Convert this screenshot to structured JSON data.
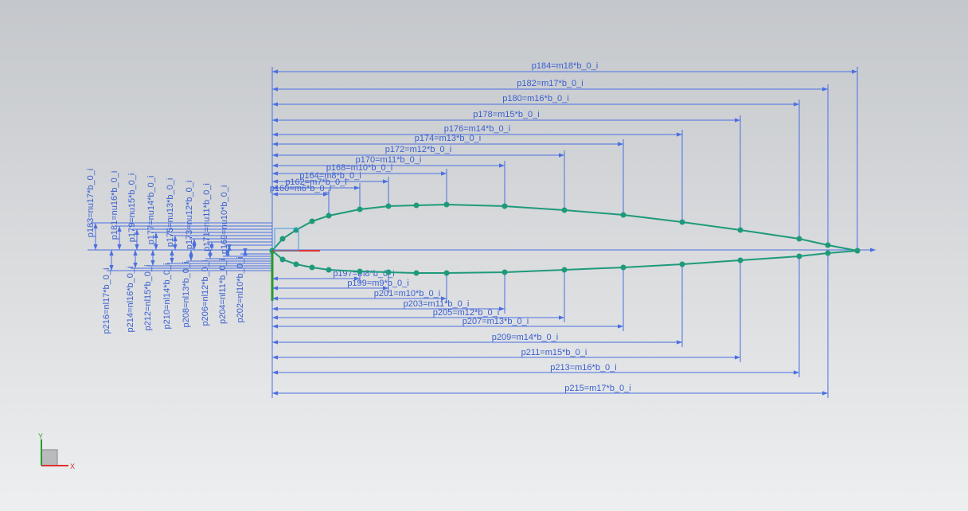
{
  "sketch": {
    "top_dimensions": [
      "p184=m18*b_0_i",
      "p182=m17*b_0_i",
      "p180=m16*b_0_i",
      "p178=m15*b_0_i",
      "p176=m14*b_0_i",
      "p174=m13*b_0_i",
      "p172=m12*b_0_i",
      "p170=m11*b_0_i",
      "p168=m10*b_0_i",
      "p164=m8*b_0_i",
      "p162=m7*b_0_i",
      "p160=m6*b_0_i"
    ],
    "bottom_dimensions": [
      "p197=m8*b_0_i",
      "p199=m9*b_0_i",
      "p201=m10*b_0_i",
      "p203=m11*b_0_i",
      "p205=m12*b_0_i",
      "p207=m13*b_0_i",
      "p209=m14*b_0_i",
      "p211=m15*b_0_i",
      "p213=m16*b_0_i",
      "p215=m17*b_0_i"
    ],
    "upper_vertical_dimensions": [
      "p183=nu17*b_0_i",
      "p181=nu16*b_0_i",
      "p179=nu15*b_0_i",
      "p177=nu14*b_0_i",
      "p175=nu13*b_0_i",
      "p173=nu12*b_0_i",
      "p171=nu11*b_0_i",
      "p169=nu10*b_0_i"
    ],
    "lower_vertical_dimensions": [
      "p216=nl17*b_0_i",
      "p214=nl16*b_0_i",
      "p212=nl15*b_0_i",
      "p210=nl14*b_0_i",
      "p208=nl13*b_0_i",
      "p206=nl12*b_0_i",
      "p204=nl11*b_0_i",
      "p202=nl10*b_0_i"
    ],
    "axis_labels": {
      "x": "X",
      "y": "Y"
    }
  }
}
